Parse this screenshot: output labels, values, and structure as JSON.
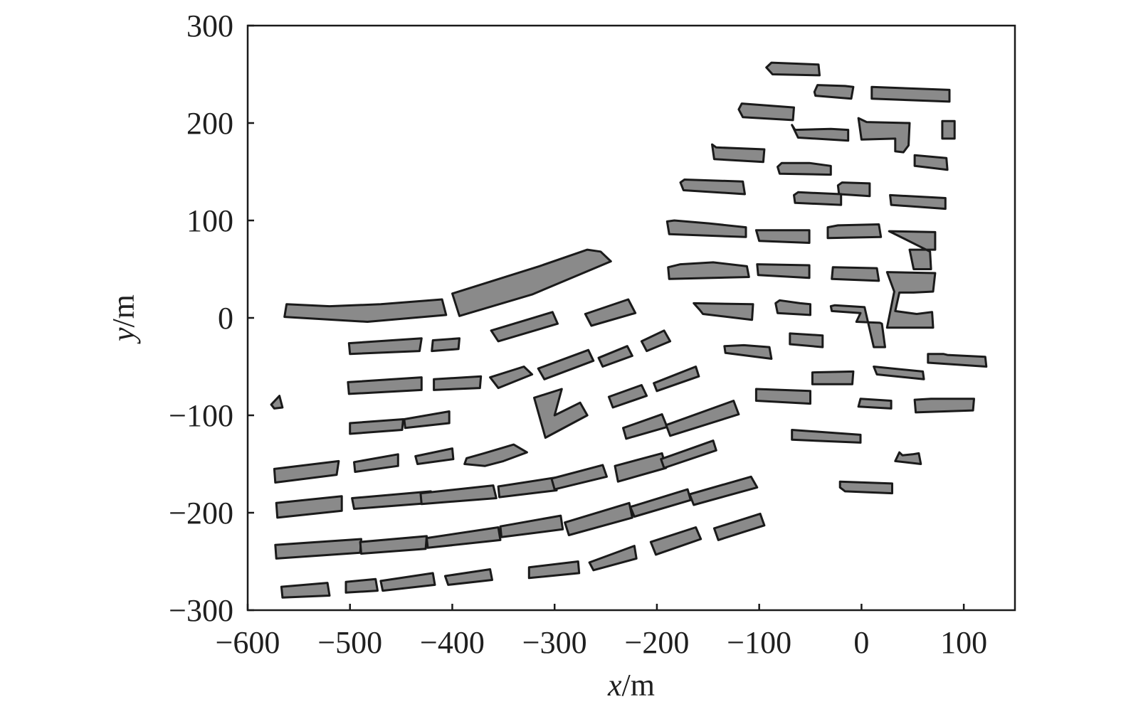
{
  "colors": {
    "building_fill": "#8a8a8a",
    "building_stroke": "#1a1a1a",
    "axis": "#1a1a1a",
    "text": "#1f1f1f"
  },
  "axes": {
    "x_label_var": "x",
    "x_label_unit": "/m",
    "y_label_var": "y",
    "y_label_unit": "/m",
    "x_range": [
      -600,
      150
    ],
    "y_range": [
      -300,
      300
    ],
    "x_ticks": [
      -600,
      -500,
      -400,
      -300,
      -200,
      -100,
      0,
      100
    ],
    "y_ticks": [
      300,
      200,
      100,
      0,
      -100,
      -200,
      -300
    ],
    "x_tick_labels": [
      "−600",
      "−500",
      "−400",
      "−300",
      "−200",
      "−100",
      "0",
      "100"
    ],
    "y_tick_labels": [
      "300",
      "200",
      "100",
      "0",
      "−100",
      "−200",
      "−300"
    ]
  },
  "buildings": [
    [
      [
        -562,
        14
      ],
      [
        -520,
        12
      ],
      [
        -470,
        14
      ],
      [
        -410,
        19
      ],
      [
        -406,
        3
      ],
      [
        -483,
        -4
      ],
      [
        -564,
        1
      ]
    ],
    [
      [
        -400,
        25
      ],
      [
        -315,
        53
      ],
      [
        -268,
        70
      ],
      [
        -255,
        68
      ],
      [
        -245,
        58
      ],
      [
        -322,
        24
      ],
      [
        -393,
        2
      ]
    ],
    [
      [
        -501,
        -26
      ],
      [
        -430,
        -21
      ],
      [
        -432,
        -34
      ],
      [
        -500,
        -37
      ]
    ],
    [
      [
        -419,
        -23
      ],
      [
        -393,
        -21
      ],
      [
        -394,
        -32
      ],
      [
        -420,
        -34
      ]
    ],
    [
      [
        -362,
        -13
      ],
      [
        -302,
        6
      ],
      [
        -297,
        -6
      ],
      [
        -355,
        -24
      ]
    ],
    [
      [
        -270,
        4
      ],
      [
        -228,
        19
      ],
      [
        -221,
        5
      ],
      [
        -264,
        -8
      ]
    ],
    [
      [
        -502,
        -66
      ],
      [
        -430,
        -61
      ],
      [
        -430,
        -74
      ],
      [
        -501,
        -78
      ]
    ],
    [
      [
        -418,
        -63
      ],
      [
        -372,
        -60
      ],
      [
        -373,
        -72
      ],
      [
        -418,
        -74
      ]
    ],
    [
      [
        -363,
        -61
      ],
      [
        -330,
        -50
      ],
      [
        -322,
        -58
      ],
      [
        -355,
        -72
      ]
    ],
    [
      [
        -316,
        -52
      ],
      [
        -267,
        -33
      ],
      [
        -262,
        -44
      ],
      [
        -310,
        -63
      ]
    ],
    [
      [
        -257,
        -41
      ],
      [
        -229,
        -29
      ],
      [
        -224,
        -39
      ],
      [
        -253,
        -50
      ]
    ],
    [
      [
        -215,
        -24
      ],
      [
        -193,
        -13
      ],
      [
        -187,
        -24
      ],
      [
        -210,
        -34
      ]
    ],
    [
      [
        -500,
        -108
      ],
      [
        -448,
        -104
      ],
      [
        -449,
        -115
      ],
      [
        -500,
        -119
      ]
    ],
    [
      [
        -447,
        -104
      ],
      [
        -403,
        -96
      ],
      [
        -403,
        -108
      ],
      [
        -446,
        -113
      ]
    ],
    [
      [
        -577,
        -89
      ],
      [
        -569,
        -80
      ],
      [
        -566,
        -92
      ],
      [
        -574,
        -93
      ]
    ],
    [
      [
        -320,
        -82
      ],
      [
        -293,
        -73
      ],
      [
        -300,
        -100
      ],
      [
        -275,
        -87
      ],
      [
        -268,
        -100
      ],
      [
        -309,
        -123
      ]
    ],
    [
      [
        -247,
        -81
      ],
      [
        -215,
        -69
      ],
      [
        -210,
        -80
      ],
      [
        -243,
        -92
      ]
    ],
    [
      [
        -203,
        -67
      ],
      [
        -162,
        -50
      ],
      [
        -159,
        -60
      ],
      [
        -200,
        -75
      ]
    ],
    [
      [
        -233,
        -113
      ],
      [
        -195,
        -99
      ],
      [
        -190,
        -112
      ],
      [
        -230,
        -124
      ]
    ],
    [
      [
        -191,
        -110
      ],
      [
        -125,
        -85
      ],
      [
        -120,
        -99
      ],
      [
        -187,
        -121
      ]
    ],
    [
      [
        -574,
        -155
      ],
      [
        -511,
        -147
      ],
      [
        -513,
        -161
      ],
      [
        -573,
        -169
      ]
    ],
    [
      [
        -496,
        -148
      ],
      [
        -453,
        -140
      ],
      [
        -453,
        -152
      ],
      [
        -495,
        -158
      ]
    ],
    [
      [
        -436,
        -142
      ],
      [
        -400,
        -134
      ],
      [
        -399,
        -145
      ],
      [
        -434,
        -150
      ]
    ],
    [
      [
        -386,
        -144
      ],
      [
        -369,
        -139
      ],
      [
        -340,
        -130
      ],
      [
        -327,
        -138
      ],
      [
        -350,
        -147
      ],
      [
        -368,
        -152
      ],
      [
        -388,
        -150
      ]
    ],
    [
      [
        -572,
        -190
      ],
      [
        -508,
        -183
      ],
      [
        -508,
        -198
      ],
      [
        -571,
        -205
      ]
    ],
    [
      [
        -498,
        -185
      ],
      [
        -421,
        -178
      ],
      [
        -421,
        -190
      ],
      [
        -496,
        -196
      ]
    ],
    [
      [
        -431,
        -180
      ],
      [
        -360,
        -172
      ],
      [
        -357,
        -185
      ],
      [
        -430,
        -191
      ]
    ],
    [
      [
        -355,
        -173
      ],
      [
        -300,
        -164
      ],
      [
        -298,
        -177
      ],
      [
        -354,
        -184
      ]
    ],
    [
      [
        -303,
        -165
      ],
      [
        -253,
        -151
      ],
      [
        -249,
        -163
      ],
      [
        -300,
        -176
      ]
    ],
    [
      [
        -241,
        -152
      ],
      [
        -195,
        -139
      ],
      [
        -191,
        -154
      ],
      [
        -238,
        -168
      ]
    ],
    [
      [
        -196,
        -145
      ],
      [
        -145,
        -126
      ],
      [
        -142,
        -136
      ],
      [
        -193,
        -154
      ]
    ],
    [
      [
        -573,
        -233
      ],
      [
        -489,
        -227
      ],
      [
        -490,
        -241
      ],
      [
        -572,
        -247
      ]
    ],
    [
      [
        -490,
        -230
      ],
      [
        -425,
        -224
      ],
      [
        -426,
        -237
      ],
      [
        -489,
        -242
      ]
    ],
    [
      [
        -425,
        -226
      ],
      [
        -355,
        -215
      ],
      [
        -353,
        -228
      ],
      [
        -424,
        -236
      ]
    ],
    [
      [
        -353,
        -214
      ],
      [
        -294,
        -203
      ],
      [
        -292,
        -217
      ],
      [
        -352,
        -225
      ]
    ],
    [
      [
        -290,
        -210
      ],
      [
        -227,
        -190
      ],
      [
        -224,
        -205
      ],
      [
        -286,
        -223
      ]
    ],
    [
      [
        -226,
        -194
      ],
      [
        -170,
        -176
      ],
      [
        -167,
        -187
      ],
      [
        -222,
        -204
      ]
    ],
    [
      [
        -168,
        -181
      ],
      [
        -108,
        -163
      ],
      [
        -102,
        -174
      ],
      [
        -164,
        -192
      ]
    ],
    [
      [
        -567,
        -276
      ],
      [
        -522,
        -272
      ],
      [
        -520,
        -285
      ],
      [
        -566,
        -287
      ]
    ],
    [
      [
        -504,
        -271
      ],
      [
        -475,
        -268
      ],
      [
        -473,
        -280
      ],
      [
        -504,
        -282
      ]
    ],
    [
      [
        -470,
        -270
      ],
      [
        -419,
        -262
      ],
      [
        -417,
        -274
      ],
      [
        -468,
        -280
      ]
    ],
    [
      [
        -407,
        -265
      ],
      [
        -363,
        -258
      ],
      [
        -361,
        -269
      ],
      [
        -404,
        -274
      ]
    ],
    [
      [
        -325,
        -256
      ],
      [
        -277,
        -250
      ],
      [
        -276,
        -262
      ],
      [
        -325,
        -267
      ]
    ],
    [
      [
        -266,
        -251
      ],
      [
        -222,
        -234
      ],
      [
        -220,
        -247
      ],
      [
        -262,
        -259
      ]
    ],
    [
      [
        -206,
        -230
      ],
      [
        -162,
        -215
      ],
      [
        -157,
        -227
      ],
      [
        -201,
        -243
      ]
    ],
    [
      [
        -144,
        -216
      ],
      [
        -99,
        -201
      ],
      [
        -95,
        -213
      ],
      [
        -140,
        -228
      ]
    ],
    [
      [
        -93,
        257
      ],
      [
        -88,
        262
      ],
      [
        -42,
        260
      ],
      [
        -41,
        249
      ],
      [
        -87,
        250
      ]
    ],
    [
      [
        -46,
        232
      ],
      [
        -43,
        239
      ],
      [
        -16,
        238
      ],
      [
        -8,
        237
      ],
      [
        -10,
        225
      ],
      [
        -45,
        228
      ]
    ],
    [
      [
        10,
        237
      ],
      [
        86,
        234
      ],
      [
        86,
        222
      ],
      [
        10,
        225
      ]
    ],
    [
      [
        -120,
        214
      ],
      [
        -117,
        220
      ],
      [
        -66,
        216
      ],
      [
        -67,
        203
      ],
      [
        -116,
        206
      ]
    ],
    [
      [
        79,
        202
      ],
      [
        91,
        202
      ],
      [
        91,
        184
      ],
      [
        79,
        184
      ]
    ],
    [
      [
        -68,
        198
      ],
      [
        -65,
        193
      ],
      [
        -30,
        194
      ],
      [
        -13,
        193
      ],
      [
        -13,
        182
      ],
      [
        -62,
        185
      ]
    ],
    [
      [
        -3,
        205
      ],
      [
        5,
        201
      ],
      [
        47,
        200
      ],
      [
        46,
        177
      ],
      [
        41,
        170
      ],
      [
        33,
        171
      ],
      [
        33,
        184
      ],
      [
        0,
        183
      ]
    ],
    [
      [
        -146,
        178
      ],
      [
        -142,
        175
      ],
      [
        -95,
        173
      ],
      [
        -96,
        160
      ],
      [
        -144,
        163
      ]
    ],
    [
      [
        -82,
        155
      ],
      [
        -78,
        159
      ],
      [
        -51,
        159
      ],
      [
        -30,
        156
      ],
      [
        -30,
        147
      ],
      [
        -80,
        148
      ]
    ],
    [
      [
        52,
        167
      ],
      [
        83,
        164
      ],
      [
        84,
        152
      ],
      [
        52,
        156
      ]
    ],
    [
      [
        -177,
        139
      ],
      [
        -173,
        142
      ],
      [
        -116,
        140
      ],
      [
        -114,
        127
      ],
      [
        -174,
        131
      ]
    ],
    [
      [
        -23,
        136
      ],
      [
        -19,
        139
      ],
      [
        8,
        138
      ],
      [
        8,
        125
      ],
      [
        -22,
        127
      ]
    ],
    [
      [
        -66,
        126
      ],
      [
        -62,
        129
      ],
      [
        -20,
        127
      ],
      [
        -20,
        116
      ],
      [
        -65,
        118
      ]
    ],
    [
      [
        28,
        126
      ],
      [
        82,
        123
      ],
      [
        82,
        112
      ],
      [
        29,
        116
      ]
    ],
    [
      [
        -190,
        99
      ],
      [
        -183,
        100
      ],
      [
        -149,
        97
      ],
      [
        -113,
        93
      ],
      [
        -113,
        83
      ],
      [
        -188,
        86
      ]
    ],
    [
      [
        -103,
        90
      ],
      [
        -51,
        90
      ],
      [
        -51,
        77
      ],
      [
        -100,
        79
      ]
    ],
    [
      [
        -33,
        93
      ],
      [
        -23,
        95
      ],
      [
        17,
        96
      ],
      [
        19,
        83
      ],
      [
        -33,
        82
      ]
    ],
    [
      [
        27,
        89
      ],
      [
        72,
        88
      ],
      [
        72,
        70
      ],
      [
        47,
        70
      ],
      [
        51,
        50
      ],
      [
        68,
        50
      ],
      [
        67,
        68
      ]
    ],
    [
      [
        -189,
        52
      ],
      [
        -177,
        55
      ],
      [
        -145,
        57
      ],
      [
        -112,
        53
      ],
      [
        -110,
        42
      ],
      [
        -188,
        40
      ]
    ],
    [
      [
        -102,
        55
      ],
      [
        -51,
        54
      ],
      [
        -51,
        41
      ],
      [
        -101,
        44
      ]
    ],
    [
      [
        -28,
        52
      ],
      [
        15,
        51
      ],
      [
        17,
        38
      ],
      [
        -29,
        40
      ]
    ],
    [
      [
        25,
        47
      ],
      [
        72,
        46
      ],
      [
        70,
        27
      ],
      [
        51,
        26
      ],
      [
        37,
        26
      ],
      [
        33,
        7
      ],
      [
        54,
        4
      ],
      [
        69,
        6
      ],
      [
        70,
        -10
      ],
      [
        25,
        -10
      ],
      [
        32,
        27
      ]
    ],
    [
      [
        -164,
        15
      ],
      [
        -158,
        8
      ],
      [
        -155,
        4
      ],
      [
        -107,
        -2
      ],
      [
        -106,
        14
      ]
    ],
    [
      [
        -84,
        15
      ],
      [
        -80,
        18
      ],
      [
        -60,
        15
      ],
      [
        -50,
        14
      ],
      [
        -50,
        3
      ],
      [
        -82,
        5
      ]
    ],
    [
      [
        -30,
        12
      ],
      [
        -26,
        13
      ],
      [
        3,
        11
      ],
      [
        12,
        -30
      ],
      [
        23,
        -30
      ],
      [
        20,
        -6
      ],
      [
        18,
        -5
      ],
      [
        -5,
        -4
      ],
      [
        -1,
        5
      ],
      [
        -29,
        7
      ]
    ],
    [
      [
        -134,
        -29
      ],
      [
        -115,
        -28
      ],
      [
        -90,
        -30
      ],
      [
        -88,
        -42
      ],
      [
        -133,
        -36
      ]
    ],
    [
      [
        -70,
        -16
      ],
      [
        -38,
        -18
      ],
      [
        -38,
        -30
      ],
      [
        -70,
        -27
      ]
    ],
    [
      [
        -48,
        -56
      ],
      [
        -48,
        -68
      ],
      [
        -9,
        -68
      ],
      [
        -8,
        -55
      ]
    ],
    [
      [
        12,
        -50
      ],
      [
        60,
        -55
      ],
      [
        61,
        -63
      ],
      [
        15,
        -58
      ]
    ],
    [
      [
        65,
        -37
      ],
      [
        80,
        -37
      ],
      [
        84,
        -38
      ],
      [
        121,
        -40
      ],
      [
        122,
        -50
      ],
      [
        65,
        -46
      ]
    ],
    [
      [
        -103,
        -73
      ],
      [
        -103,
        -85
      ],
      [
        -50,
        -88
      ],
      [
        -50,
        -75
      ]
    ],
    [
      [
        -1,
        -83
      ],
      [
        -3,
        -91
      ],
      [
        29,
        -93
      ],
      [
        29,
        -85
      ]
    ],
    [
      [
        52,
        -84
      ],
      [
        68,
        -83
      ],
      [
        87,
        -83
      ],
      [
        110,
        -83
      ],
      [
        109,
        -95
      ],
      [
        53,
        -97
      ]
    ],
    [
      [
        -68,
        -115
      ],
      [
        -68,
        -125
      ],
      [
        -1,
        -128
      ],
      [
        -1,
        -120
      ]
    ],
    [
      [
        37,
        -138
      ],
      [
        40,
        -141
      ],
      [
        50,
        -140
      ],
      [
        56,
        -139
      ],
      [
        58,
        -150
      ],
      [
        33,
        -147
      ]
    ],
    [
      [
        -21,
        -168
      ],
      [
        -21,
        -174
      ],
      [
        -16,
        -178
      ],
      [
        30,
        -180
      ],
      [
        30,
        -170
      ]
    ]
  ]
}
